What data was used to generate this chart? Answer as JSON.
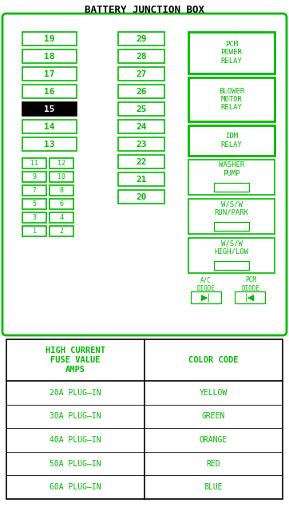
{
  "title": "BATTERY JUNCTION BOX",
  "green": "#00bb00",
  "black": "#000000",
  "white": "#ffffff",
  "bg": "#ffffff",
  "left_large_fuses": [
    {
      "num": "19",
      "filled": false
    },
    {
      "num": "18",
      "filled": false
    },
    {
      "num": "17",
      "filled": false
    },
    {
      "num": "16",
      "filled": false
    },
    {
      "num": "15",
      "filled": true
    },
    {
      "num": "14",
      "filled": false
    },
    {
      "num": "13",
      "filled": false
    }
  ],
  "left_small_pairs": [
    [
      "11",
      "12"
    ],
    [
      "9",
      "10"
    ],
    [
      "7",
      "8"
    ],
    [
      "5",
      "6"
    ],
    [
      "3",
      "4"
    ],
    [
      "1",
      "2"
    ]
  ],
  "mid_fuses": [
    "29",
    "28",
    "27",
    "26",
    "25",
    "24",
    "23",
    "22",
    "21",
    "20"
  ],
  "relays": [
    {
      "label": "PCM\nPOWER\nRELAY",
      "has_inner": false,
      "thick": true
    },
    {
      "label": "BLOWER\nMOTOR\nRELAY",
      "has_inner": false,
      "thick": true
    },
    {
      "label": "IDM\nRELAY",
      "has_inner": false,
      "thick": true
    },
    {
      "label": "WASHER\nPUMP",
      "has_inner": true,
      "thick": false
    },
    {
      "label": "W/S/W\nRUN/PARK",
      "has_inner": true,
      "thick": false
    },
    {
      "label": "W/S/W\nHIGH/LOW",
      "has_inner": true,
      "thick": false
    }
  ],
  "table_col1_header": "HIGH CURRENT\nFUSE VALUE\nAMPS",
  "table_col2_header": "COLOR CODE",
  "table_rows": [
    [
      "20A PLUG–IN",
      "YELLOW"
    ],
    [
      "30A PLUG–IN",
      "GREEN"
    ],
    [
      "40A PLUG–IN",
      "ORANGE"
    ],
    [
      "50A PLUG–IN",
      "RED"
    ],
    [
      "60A PLUG–IN",
      "BLUE"
    ]
  ]
}
